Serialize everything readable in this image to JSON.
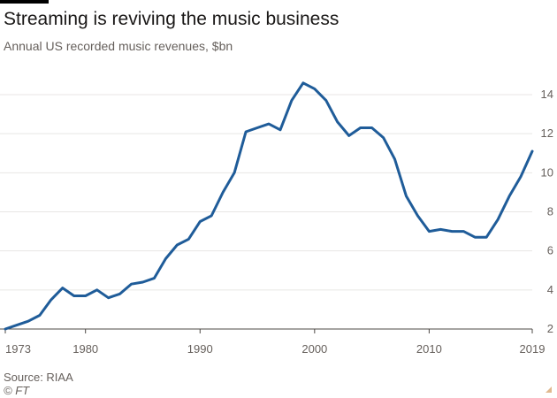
{
  "header": {
    "title": "Streaming is reviving the music business",
    "subtitle": "Annual US recorded music revenues, $bn"
  },
  "footer": {
    "source": "Source: RIAA",
    "credit": "© FT"
  },
  "colors": {
    "line": "#1f5c99",
    "grid": "#e8e6e4",
    "axis": "#4d4845",
    "text": "#66605c"
  },
  "chart_data": {
    "type": "line",
    "title": "Streaming is reviving the music business",
    "subtitle": "Annual US recorded music revenues, $bn",
    "xlabel": "",
    "ylabel": "",
    "xlim": [
      1973,
      2019
    ],
    "ylim": [
      2,
      14
    ],
    "x_ticks": [
      "1973",
      "1980",
      "1990",
      "2000",
      "2010",
      "2019"
    ],
    "y_ticks": [
      "2",
      "4",
      "6",
      "8",
      "10",
      "12",
      "14"
    ],
    "y_axis_position": "right",
    "grid": "horizontal",
    "x": [
      1973,
      1974,
      1975,
      1976,
      1977,
      1978,
      1979,
      1980,
      1981,
      1982,
      1983,
      1984,
      1985,
      1986,
      1987,
      1988,
      1989,
      1990,
      1991,
      1992,
      1993,
      1994,
      1995,
      1996,
      1997,
      1998,
      1999,
      2000,
      2001,
      2002,
      2003,
      2004,
      2005,
      2006,
      2007,
      2008,
      2009,
      2010,
      2011,
      2012,
      2013,
      2014,
      2015,
      2016,
      2017,
      2018,
      2019
    ],
    "series": [
      {
        "values": [
          2.0,
          2.2,
          2.4,
          2.7,
          3.5,
          4.1,
          3.7,
          3.7,
          4.0,
          3.6,
          3.8,
          4.3,
          4.4,
          4.6,
          5.6,
          6.3,
          6.6,
          7.5,
          7.8,
          9.0,
          10.0,
          12.1,
          12.3,
          12.5,
          12.2,
          13.7,
          14.6,
          14.3,
          13.7,
          12.6,
          11.9,
          12.3,
          12.3,
          11.8,
          10.7,
          8.8,
          7.8,
          7.0,
          7.1,
          7.0,
          7.0,
          6.7,
          6.7,
          7.6,
          8.8,
          9.8,
          11.1
        ]
      }
    ]
  }
}
